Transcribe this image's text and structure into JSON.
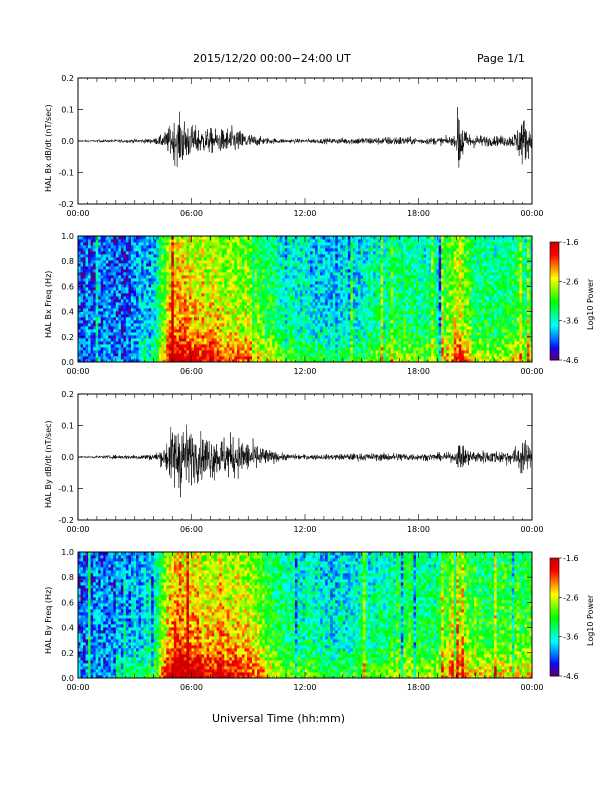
{
  "header": {
    "title": "2015/12/20  00:00−24:00 UT",
    "page": "Page 1/1"
  },
  "xaxis_title": "Universal Time (hh:mm)",
  "chart_data": [
    {
      "type": "line",
      "ylabel": "HAL Bx dB/dt (nT/sec)",
      "xlim": [
        0,
        24
      ],
      "ylim": [
        -0.2,
        0.2
      ],
      "x_ticks": [
        "00:00",
        "06:00",
        "12:00",
        "18:00",
        "00:00"
      ],
      "y_ticks": [
        "-0.2",
        "-0.1",
        "0.0",
        "0.1",
        "0.2"
      ],
      "envelope": {
        "x": [
          0,
          1,
          2,
          3,
          4,
          4.5,
          5,
          5.5,
          6,
          6.5,
          7,
          7.5,
          8,
          8.5,
          9,
          9.5,
          10,
          10.5,
          11,
          12,
          13,
          14,
          15,
          16,
          17,
          17.5,
          18,
          19,
          20,
          20.1,
          20.5,
          21,
          22,
          23,
          23.5,
          23.8,
          24
        ],
        "amplitude": [
          0.003,
          0.004,
          0.005,
          0.006,
          0.008,
          0.02,
          0.06,
          0.08,
          0.05,
          0.04,
          0.04,
          0.035,
          0.045,
          0.035,
          0.025,
          0.015,
          0.01,
          0.008,
          0.007,
          0.007,
          0.008,
          0.01,
          0.012,
          0.012,
          0.015,
          0.012,
          0.01,
          0.012,
          0.015,
          0.13,
          0.03,
          0.02,
          0.015,
          0.02,
          0.08,
          0.05,
          0.03
        ]
      }
    },
    {
      "type": "heatmap",
      "ylabel": "HAL Bx Freq (Hz)",
      "colorbar_label": "Log10 Power",
      "colorbar_ticks": [
        "-1.6",
        "-2.6",
        "-3.6",
        "-4.6"
      ],
      "zlim": [
        -4.6,
        -1.6
      ],
      "xlim": [
        0,
        24
      ],
      "ylim": [
        0,
        1.0
      ],
      "x_ticks": [
        "00:00",
        "06:00",
        "12:00",
        "18:00",
        "00:00"
      ],
      "y_ticks": [
        "0.0",
        "0.2",
        "0.4",
        "0.6",
        "0.8",
        "1.0"
      ],
      "activity_by_hour": [
        0.15,
        0.18,
        0.2,
        0.22,
        0.3,
        0.85,
        0.8,
        0.75,
        0.7,
        0.65,
        0.5,
        0.4,
        0.35,
        0.3,
        0.3,
        0.35,
        0.4,
        0.45,
        0.45,
        0.4,
        0.75,
        0.5,
        0.45,
        0.5,
        0.5
      ]
    },
    {
      "type": "line",
      "ylabel": "HAL By dB/dt (nT/sec)",
      "xlim": [
        0,
        24
      ],
      "ylim": [
        -0.2,
        0.2
      ],
      "x_ticks": [
        "00:00",
        "06:00",
        "12:00",
        "18:00",
        "00:00"
      ],
      "y_ticks": [
        "-0.2",
        "-0.1",
        "0.0",
        "0.1",
        "0.2"
      ],
      "envelope": {
        "x": [
          0,
          1,
          2,
          3,
          4,
          4.5,
          5,
          5.5,
          6,
          6.5,
          7,
          7.5,
          8,
          8.5,
          9,
          9.5,
          10,
          10.5,
          11,
          12,
          13,
          14,
          15,
          16,
          17,
          17.5,
          18,
          19,
          20,
          20.1,
          20.5,
          21,
          22,
          23,
          23.5,
          23.8,
          24
        ],
        "amplitude": [
          0.003,
          0.004,
          0.006,
          0.008,
          0.01,
          0.03,
          0.1,
          0.12,
          0.08,
          0.07,
          0.07,
          0.06,
          0.07,
          0.06,
          0.05,
          0.04,
          0.025,
          0.015,
          0.01,
          0.008,
          0.008,
          0.01,
          0.012,
          0.012,
          0.014,
          0.013,
          0.01,
          0.012,
          0.015,
          0.05,
          0.03,
          0.02,
          0.02,
          0.025,
          0.06,
          0.04,
          0.02
        ]
      }
    },
    {
      "type": "heatmap",
      "ylabel": "HAL By Freq (Hz)",
      "colorbar_label": "Log10 Power",
      "colorbar_ticks": [
        "-1.6",
        "-2.6",
        "-3.6",
        "-4.6"
      ],
      "zlim": [
        -4.6,
        -1.6
      ],
      "xlim": [
        0,
        24
      ],
      "ylim": [
        0,
        1.0
      ],
      "x_ticks": [
        "00:00",
        "06:00",
        "12:00",
        "18:00",
        "00:00"
      ],
      "y_ticks": [
        "0.0",
        "0.2",
        "0.4",
        "0.6",
        "0.8",
        "1.0"
      ],
      "activity_by_hour": [
        0.2,
        0.22,
        0.25,
        0.28,
        0.35,
        0.9,
        0.85,
        0.8,
        0.78,
        0.72,
        0.55,
        0.45,
        0.4,
        0.35,
        0.35,
        0.4,
        0.45,
        0.5,
        0.5,
        0.45,
        0.75,
        0.55,
        0.5,
        0.55,
        0.55
      ]
    }
  ]
}
